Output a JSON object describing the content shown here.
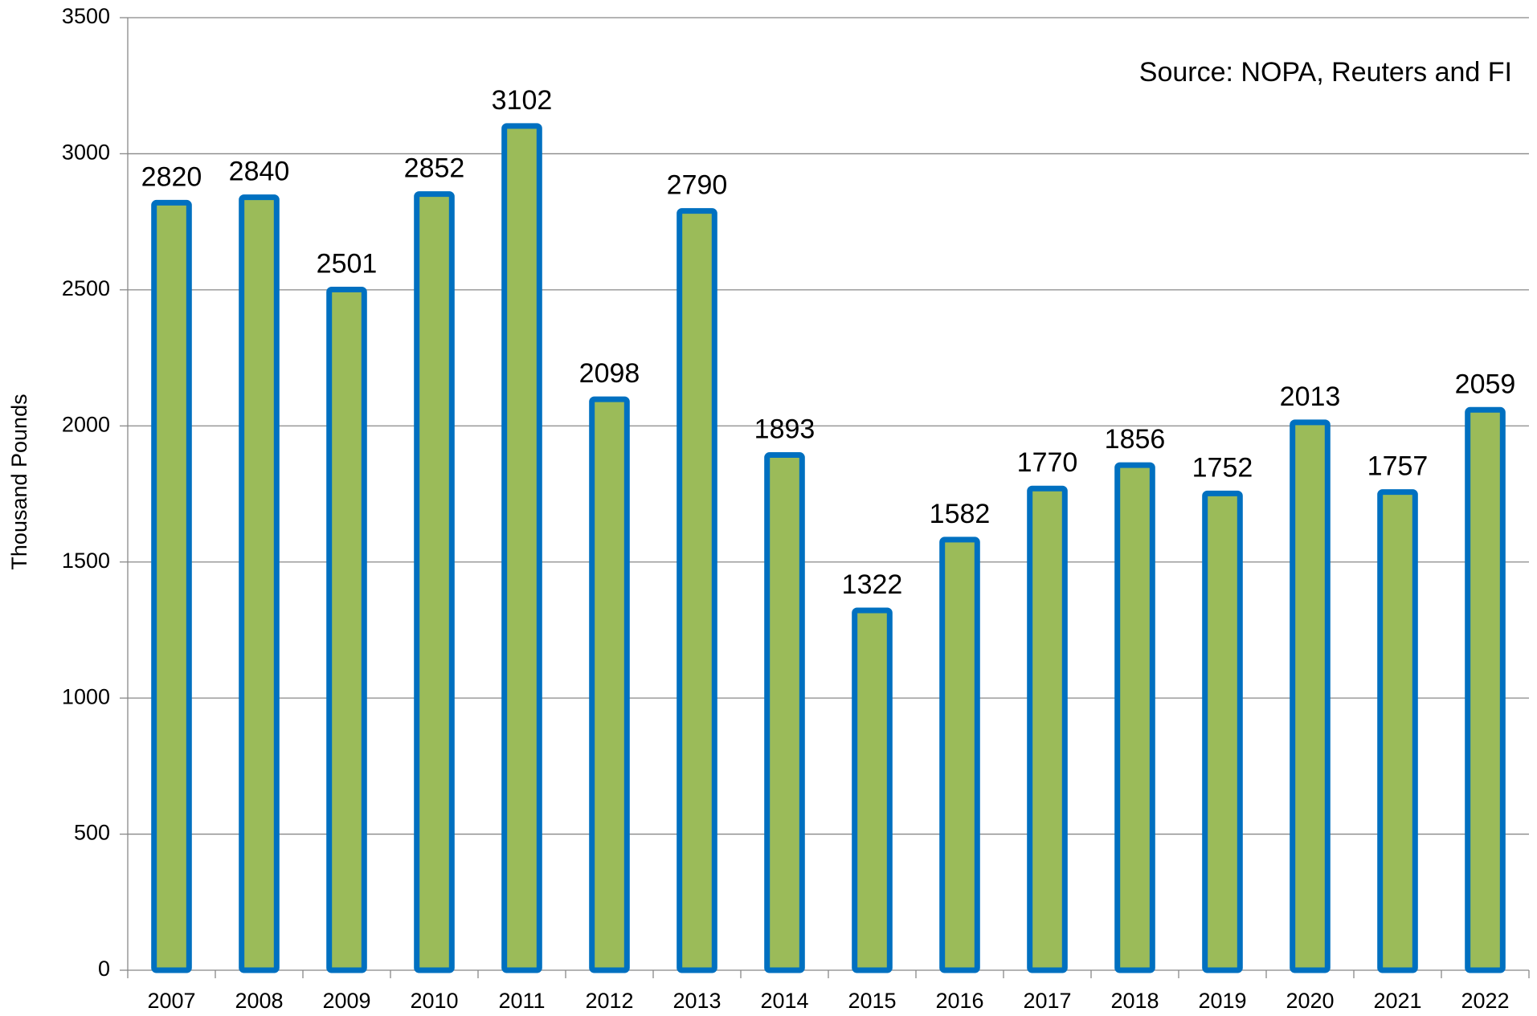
{
  "chart_data": {
    "type": "bar",
    "y_label": "Thousand Pounds",
    "annotation": "Source: NOPA, Reuters and FI",
    "categories": [
      "2007",
      "2008",
      "2009",
      "2010",
      "2011",
      "2012",
      "2013",
      "2014",
      "2015",
      "2016",
      "2017",
      "2018",
      "2019",
      "2020",
      "2021",
      "2022"
    ],
    "values": [
      2820,
      2840,
      2501,
      2852,
      3102,
      2098,
      2790,
      1893,
      1322,
      1582,
      1770,
      1856,
      1752,
      2013,
      1757,
      2059
    ],
    "color": "#9bbb59",
    "edge_color": "#0070c0",
    "ylim": [
      0,
      3500
    ],
    "yticks": [
      0,
      500,
      1000,
      1500,
      2000,
      2500,
      3000,
      3500
    ],
    "grid": true
  }
}
